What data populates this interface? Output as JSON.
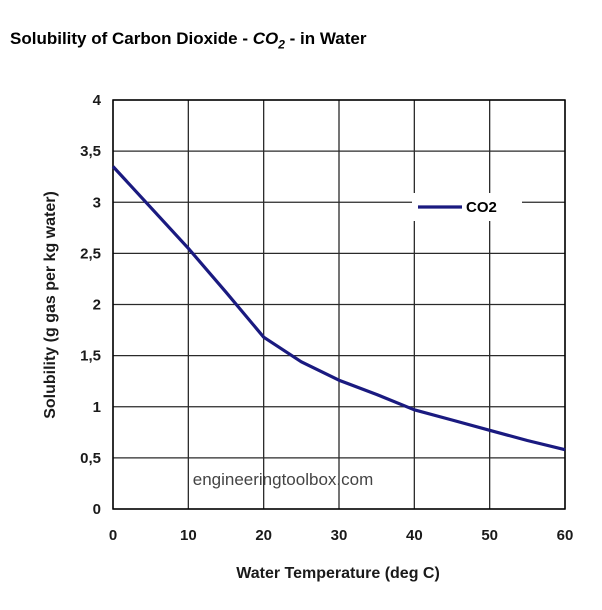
{
  "title": {
    "prefix": "Solubility of Carbon Dioxide - ",
    "formula_main": "CO",
    "formula_sub": "2",
    "suffix": " - in Water"
  },
  "watermark": "engineeringtoolbox.com",
  "colors": {
    "series": "#1a1a80",
    "grid": "#2a2a2a",
    "axis": "#000000"
  },
  "chart_data": {
    "type": "line",
    "xlabel": "Water Temperature (deg C)",
    "ylabel": "Solubility (g gas per kg water)",
    "xlim": [
      0,
      60
    ],
    "ylim": [
      0,
      4
    ],
    "xticks": [
      0,
      10,
      20,
      30,
      40,
      50,
      60
    ],
    "xtick_labels": [
      "0",
      "10",
      "20",
      "30",
      "40",
      "50",
      "60"
    ],
    "yticks": [
      0,
      0.5,
      1,
      1.5,
      2,
      2.5,
      3,
      3.5,
      4
    ],
    "ytick_labels": [
      "0",
      "0,5",
      "1",
      "1,5",
      "2",
      "2,5",
      "3",
      "3,5",
      "4"
    ],
    "grid": true,
    "legend_position": "top-right",
    "series": [
      {
        "name": "CO2",
        "x": [
          0,
          5,
          10,
          15,
          20,
          25,
          30,
          35,
          40,
          45,
          50,
          55,
          60
        ],
        "y": [
          3.35,
          2.95,
          2.55,
          2.12,
          1.68,
          1.44,
          1.26,
          1.12,
          0.97,
          0.87,
          0.77,
          0.67,
          0.58
        ]
      }
    ]
  }
}
